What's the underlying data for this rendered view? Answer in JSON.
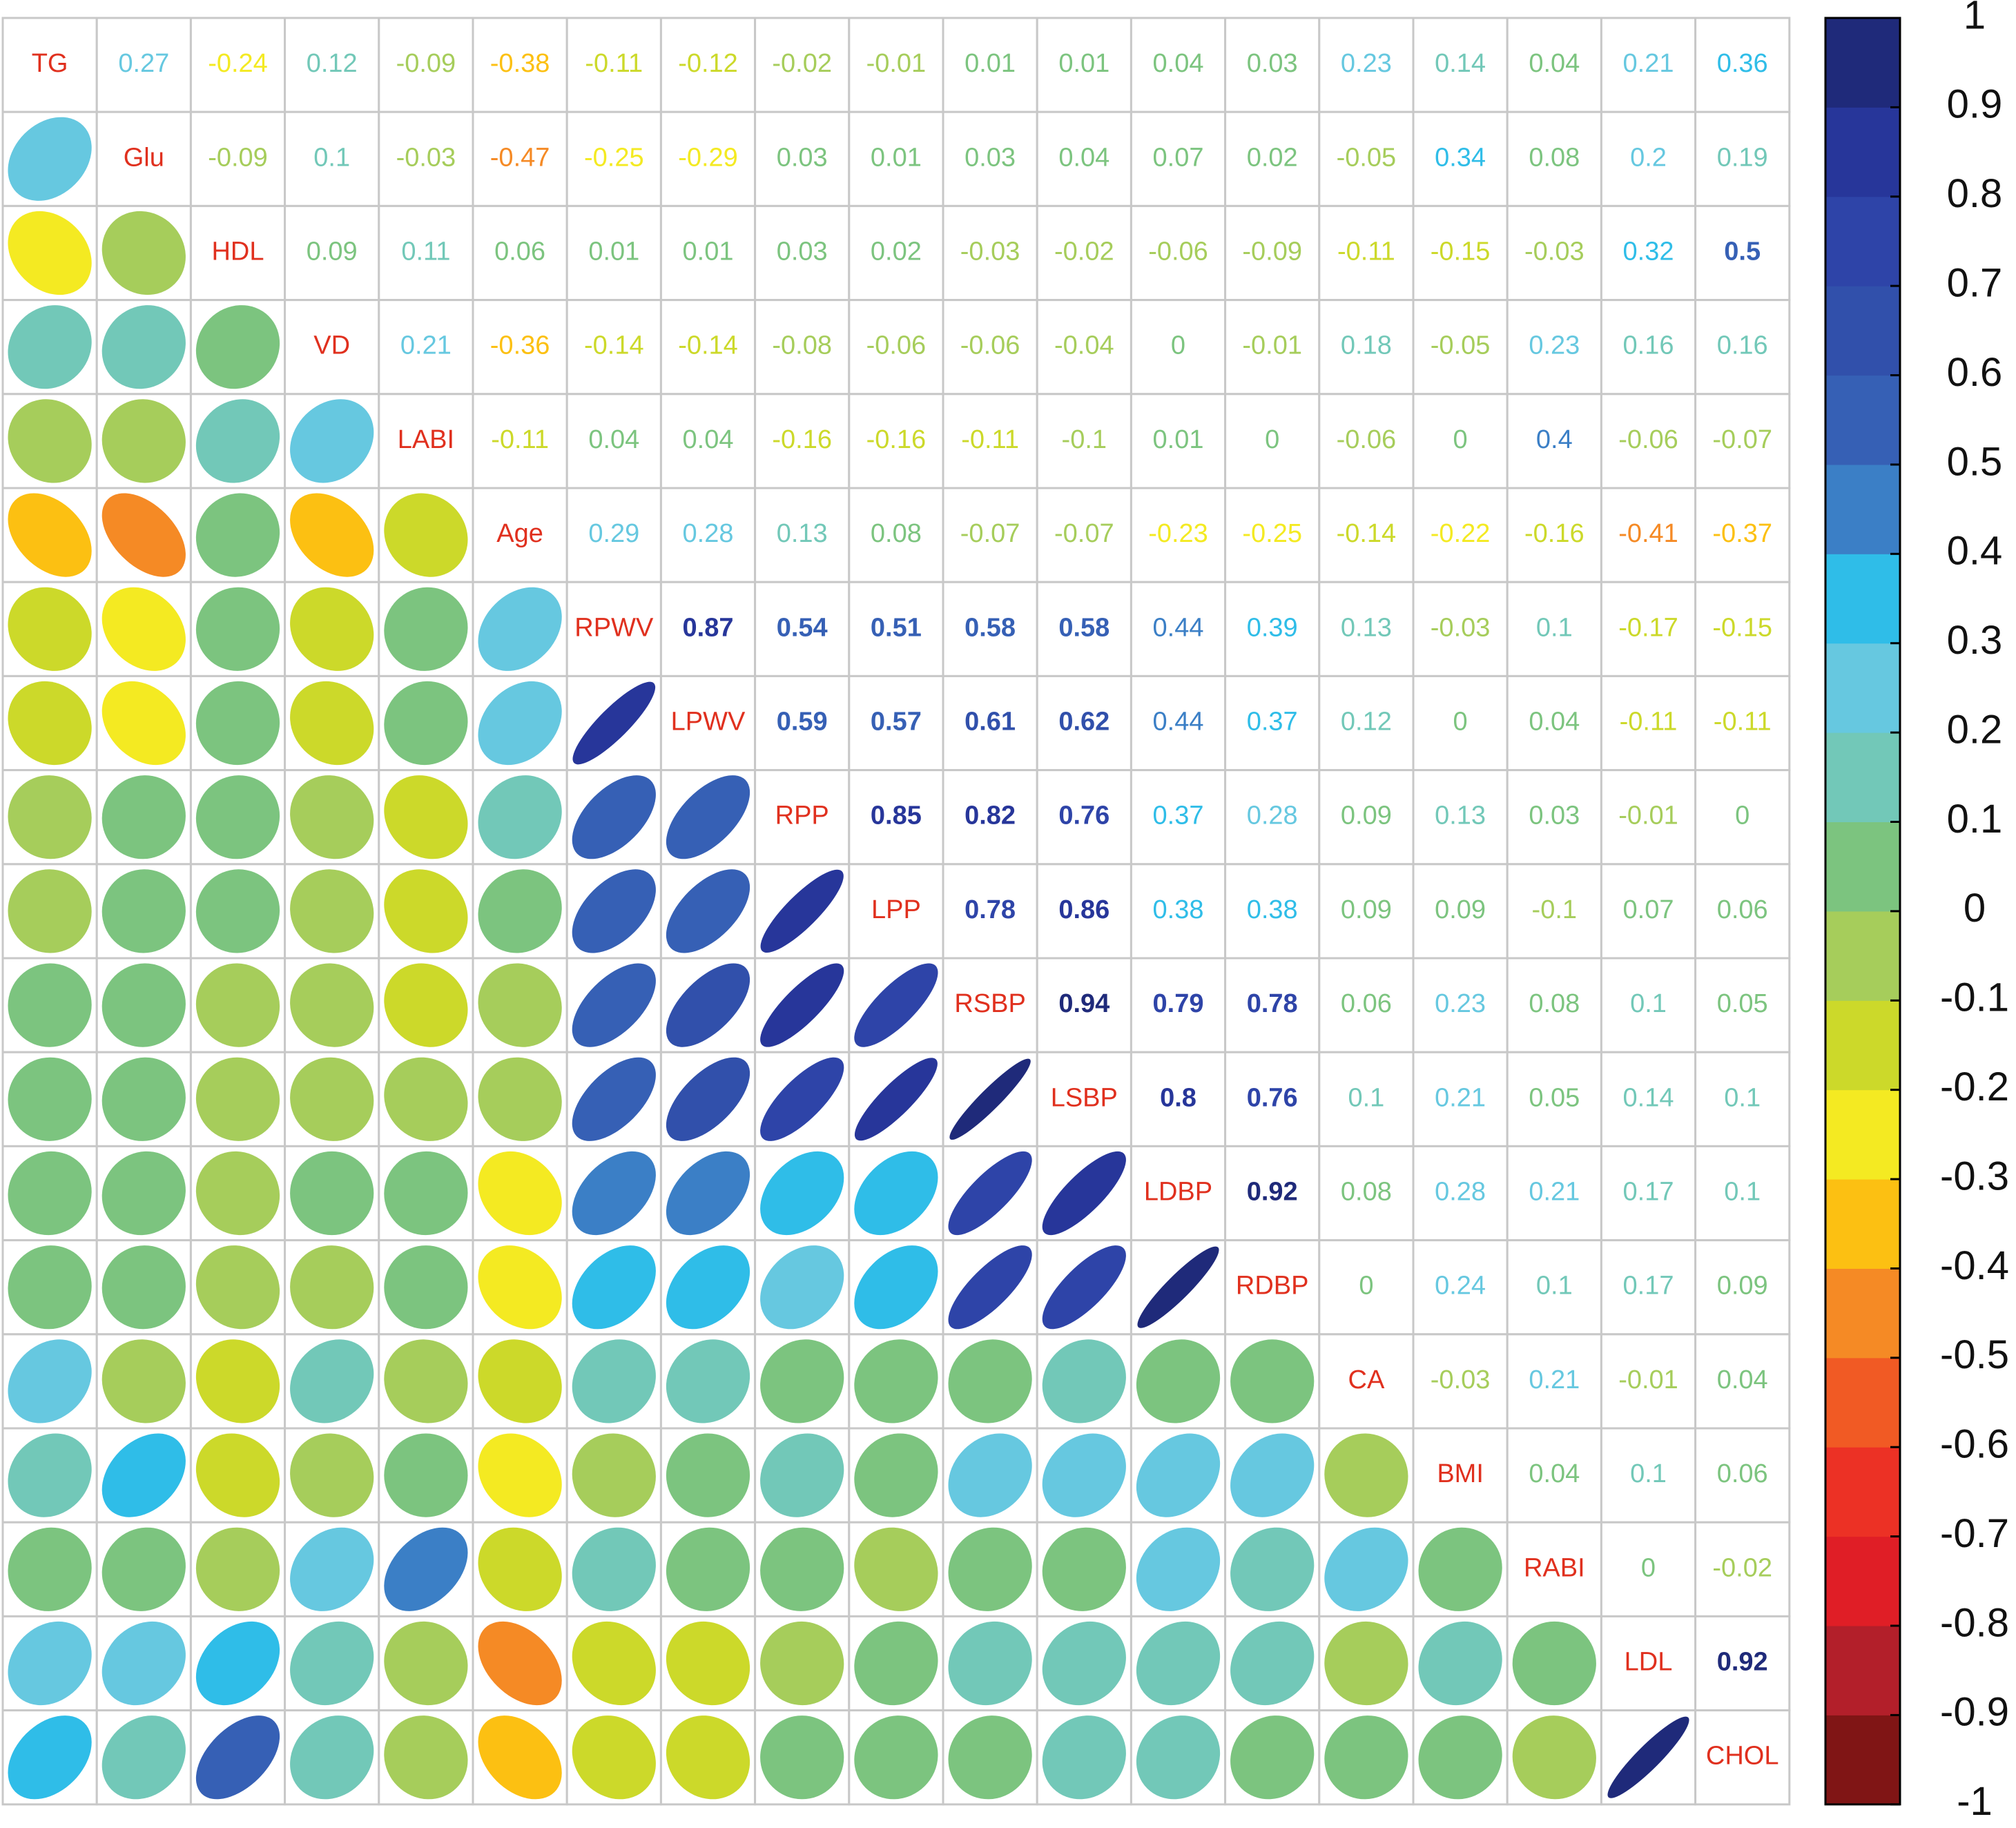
{
  "chart_data": {
    "type": "corrplot",
    "labels": [
      "TG",
      "Glu",
      "HDL",
      "VD",
      "LABI",
      "Age",
      "RPWV",
      "LPWV",
      "RPP",
      "LPP",
      "RSBP",
      "LSBP",
      "LDBP",
      "RDBP",
      "CA",
      "BMI",
      "RABI",
      "LDL",
      "CHOL"
    ],
    "values": [
      [
        0.27,
        -0.24,
        0.12,
        -0.09,
        -0.38,
        -0.11,
        -0.12,
        -0.02,
        -0.01,
        0.01,
        0.01,
        0.04,
        0.03,
        0.23,
        0.14,
        0.04,
        0.21,
        0.36
      ],
      [
        -0.09,
        0.1,
        -0.03,
        -0.47,
        -0.25,
        -0.29,
        0.03,
        0.01,
        0.03,
        0.04,
        0.07,
        0.02,
        -0.05,
        0.34,
        0.08,
        0.2,
        0.19
      ],
      [
        0.09,
        0.11,
        0.06,
        0.01,
        0.01,
        0.03,
        0.02,
        -0.03,
        -0.02,
        -0.06,
        -0.09,
        -0.11,
        -0.15,
        -0.03,
        0.32,
        0.5
      ],
      [
        0.21,
        -0.36,
        -0.14,
        -0.14,
        -0.08,
        -0.06,
        -0.06,
        -0.04,
        0,
        -0.01,
        0.18,
        -0.05,
        0.23,
        0.16,
        0.16
      ],
      [
        -0.11,
        0.04,
        0.04,
        -0.16,
        -0.16,
        -0.11,
        -0.1,
        0.01,
        0,
        -0.06,
        0,
        0.4,
        -0.06,
        -0.07
      ],
      [
        0.29,
        0.28,
        0.13,
        0.08,
        -0.07,
        -0.07,
        -0.23,
        -0.25,
        -0.14,
        -0.22,
        -0.16,
        -0.41,
        -0.37
      ],
      [
        0.87,
        0.54,
        0.51,
        0.58,
        0.58,
        0.44,
        0.39,
        0.13,
        -0.03,
        0.1,
        -0.17,
        -0.15
      ],
      [
        0.59,
        0.57,
        0.61,
        0.62,
        0.44,
        0.37,
        0.12,
        0,
        0.04,
        -0.11,
        -0.11
      ],
      [
        0.85,
        0.82,
        0.76,
        0.37,
        0.28,
        0.09,
        0.13,
        0.03,
        -0.01,
        0
      ],
      [
        0.78,
        0.86,
        0.38,
        0.38,
        0.09,
        0.09,
        -0.1,
        0.07,
        0.06
      ],
      [
        0.94,
        0.79,
        0.78,
        0.06,
        0.23,
        0.08,
        0.1,
        0.05
      ],
      [
        0.8,
        0.76,
        0.1,
        0.21,
        0.05,
        0.14,
        0.1
      ],
      [
        0.92,
        0.08,
        0.28,
        0.21,
        0.17,
        0.1
      ],
      [
        0,
        0.24,
        0.1,
        0.17,
        0.09
      ],
      [
        -0.03,
        0.21,
        -0.01,
        0.04
      ],
      [
        0.04,
        0.1,
        0.06
      ],
      [
        0,
        -0.02
      ],
      [
        0.92
      ]
    ],
    "colors": [
      "#801515",
      "#b31f2a",
      "#e01e26",
      "#ec3125",
      "#f15a24",
      "#f58a25",
      "#fcc012",
      "#f4ea22",
      "#ccd92a",
      "#a6cd5b",
      "#7cc47f",
      "#72c8b8",
      "#66c8e0",
      "#2fbde8",
      "#3b7fc6",
      "#3660b5",
      "#3150ab",
      "#2e44a8",
      "#27369a",
      "#1f2a7a"
    ],
    "label_color": "#e0301e",
    "clim": [
      -1,
      1
    ],
    "cticks": [
      -1,
      -0.9,
      -0.8,
      -0.7,
      -0.6,
      -0.5,
      -0.4,
      -0.3,
      -0.2,
      -0.1,
      0,
      0.1,
      0.2,
      0.3,
      0.4,
      0.5,
      0.6,
      0.7,
      0.8,
      0.9,
      1
    ]
  }
}
